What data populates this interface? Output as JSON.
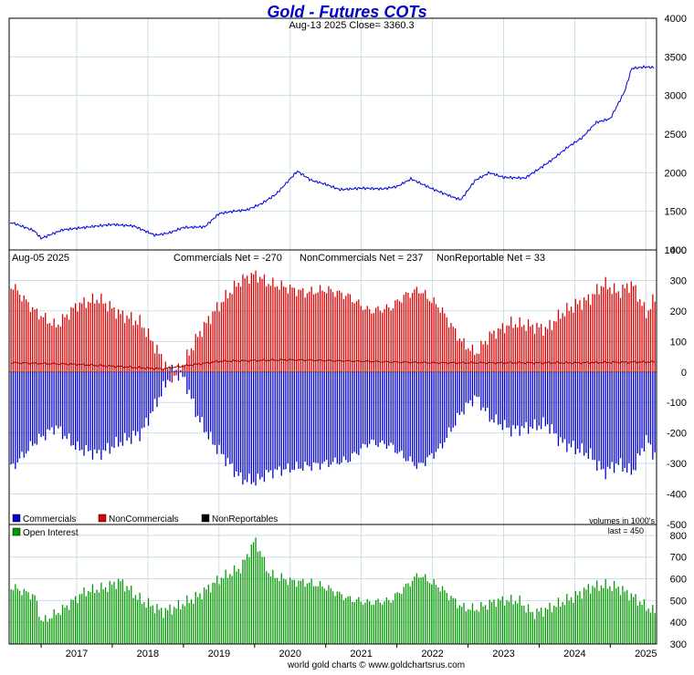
{
  "title": "Gold - Futures COTs",
  "price_panel": {
    "subtitle": "Aug-13  2025   Close= 3360.3",
    "y_ticks": [
      "4000",
      "3500",
      "3000",
      "2500",
      "2000",
      "1500",
      "1000"
    ]
  },
  "cot_panel": {
    "date_label": "Aug-05  2025",
    "commercials_net": "Commercials Net = -270",
    "noncommercials_net": "NonCommercials Net = 237",
    "nonreportable_net": "NonReportable Net = 33",
    "y_ticks": [
      "400",
      "300",
      "200",
      "100",
      "0",
      "-100",
      "-200",
      "-300",
      "-400",
      "-500"
    ],
    "legend": [
      "Commercials",
      "NonCommercials",
      "NonReportables"
    ],
    "volume_note": "volumes in 1000's"
  },
  "oi_panel": {
    "legend": "Open Interest",
    "last_label": "last = 450",
    "y_ticks": [
      "800",
      "700",
      "600",
      "500",
      "400",
      "300"
    ]
  },
  "x_ticks": [
    "2017",
    "2018",
    "2019",
    "2020",
    "2021",
    "2022",
    "2023",
    "2024",
    "2025"
  ],
  "footer": "world gold charts © www.goldchartsrus.com",
  "colors": {
    "title": "#0000cc",
    "price_line": "#0000dd",
    "commercials": "#0000cc",
    "noncommercials": "#dd0000",
    "nonreportables": "#000000",
    "open_interest": "#009900",
    "grid": "#ccdde8"
  },
  "chart_data": [
    {
      "type": "line",
      "title": "Gold - Futures COTs",
      "series": [
        {
          "x": [
            2016.6,
            2016.9,
            2017.0,
            2017.3,
            2017.7,
            2018.0,
            2018.3,
            2018.6,
            2018.8,
            2019.0,
            2019.3,
            2019.5,
            2019.7,
            2019.9,
            2020.1,
            2020.3,
            2020.6,
            2020.8,
            2021.0,
            2021.2,
            2021.5,
            2021.8,
            2022.0,
            2022.2,
            2022.5,
            2022.8,
            2022.9,
            2023.1,
            2023.3,
            2023.5,
            2023.8,
            2024.0,
            2024.2,
            2024.4,
            2024.6,
            2024.8,
            2025.0,
            2025.2,
            2025.3,
            2025.5,
            2025.62
          ],
          "y": [
            1350,
            1250,
            1150,
            1260,
            1300,
            1330,
            1310,
            1190,
            1220,
            1290,
            1300,
            1470,
            1500,
            1520,
            1600,
            1720,
            2020,
            1900,
            1850,
            1780,
            1800,
            1790,
            1820,
            1920,
            1790,
            1680,
            1650,
            1900,
            2000,
            1940,
            1930,
            2050,
            2180,
            2330,
            2450,
            2650,
            2700,
            3050,
            3350,
            3370,
            3360
          ]
        }
      ],
      "ylim": [
        1000,
        4000
      ]
    },
    {
      "type": "bar",
      "series": [
        {
          "name": "Commercials",
          "x": [
            2016.6,
            2016.9,
            2017.2,
            2017.5,
            2017.8,
            2018.1,
            2018.4,
            2018.7,
            2018.85,
            2019.0,
            2019.2,
            2019.4,
            2019.6,
            2019.8,
            2020.0,
            2020.2,
            2020.4,
            2020.7,
            2021.0,
            2021.3,
            2021.6,
            2021.9,
            2022.1,
            2022.3,
            2022.6,
            2022.9,
            2023.1,
            2023.3,
            2023.6,
            2023.9,
            2024.1,
            2024.3,
            2024.5,
            2024.7,
            2024.9,
            2025.1,
            2025.3,
            2025.5,
            2025.6
          ],
          "y": [
            -310,
            -230,
            -180,
            -250,
            -270,
            -230,
            -200,
            -60,
            10,
            -20,
            -150,
            -230,
            -290,
            -350,
            -360,
            -330,
            -320,
            -310,
            -300,
            -290,
            -230,
            -240,
            -280,
            -310,
            -250,
            -130,
            -80,
            -150,
            -190,
            -180,
            -170,
            -230,
            -250,
            -270,
            -330,
            -300,
            -330,
            -220,
            -270
          ]
        },
        {
          "name": "NonCommercials",
          "x": [
            2016.6,
            2016.9,
            2017.2,
            2017.5,
            2017.8,
            2018.1,
            2018.4,
            2018.7,
            2018.85,
            2019.0,
            2019.2,
            2019.4,
            2019.6,
            2019.8,
            2020.0,
            2020.2,
            2020.4,
            2020.7,
            2021.0,
            2021.3,
            2021.6,
            2021.9,
            2022.1,
            2022.3,
            2022.6,
            2022.9,
            2023.1,
            2023.3,
            2023.6,
            2023.9,
            2024.1,
            2024.3,
            2024.5,
            2024.7,
            2024.9,
            2025.1,
            2025.3,
            2025.5,
            2025.6
          ],
          "y": [
            280,
            200,
            150,
            220,
            240,
            190,
            160,
            40,
            -20,
            30,
            120,
            190,
            250,
            300,
            320,
            290,
            280,
            260,
            270,
            250,
            200,
            210,
            250,
            270,
            210,
            100,
            60,
            120,
            160,
            150,
            140,
            190,
            220,
            240,
            290,
            260,
            290,
            190,
            237
          ]
        },
        {
          "name": "NonReportables",
          "x": [
            2016.6,
            2017.5,
            2018.7,
            2019.5,
            2020.5,
            2021.5,
            2022.5,
            2023.5,
            2024.5,
            2025.6
          ],
          "y": [
            30,
            25,
            10,
            35,
            40,
            35,
            30,
            30,
            30,
            33
          ]
        }
      ],
      "ylim": [
        -500,
        400
      ]
    },
    {
      "type": "bar",
      "series": [
        {
          "name": "Open Interest",
          "x": [
            2016.6,
            2016.9,
            2017.0,
            2017.3,
            2017.6,
            2017.9,
            2018.1,
            2018.4,
            2018.7,
            2018.9,
            2019.2,
            2019.5,
            2019.8,
            2020.0,
            2020.2,
            2020.5,
            2020.8,
            2021.0,
            2021.3,
            2021.6,
            2021.9,
            2022.1,
            2022.3,
            2022.6,
            2022.9,
            2023.1,
            2023.4,
            2023.7,
            2023.9,
            2024.1,
            2024.3,
            2024.5,
            2024.7,
            2024.9,
            2025.1,
            2025.3,
            2025.5,
            2025.6
          ],
          "y": [
            560,
            520,
            400,
            460,
            540,
            560,
            590,
            500,
            450,
            470,
            520,
            600,
            650,
            780,
            620,
            590,
            580,
            560,
            510,
            490,
            500,
            560,
            620,
            560,
            470,
            460,
            500,
            500,
            440,
            460,
            490,
            520,
            560,
            570,
            560,
            520,
            470,
            450
          ]
        }
      ],
      "ylim": [
        300,
        850
      ]
    }
  ]
}
